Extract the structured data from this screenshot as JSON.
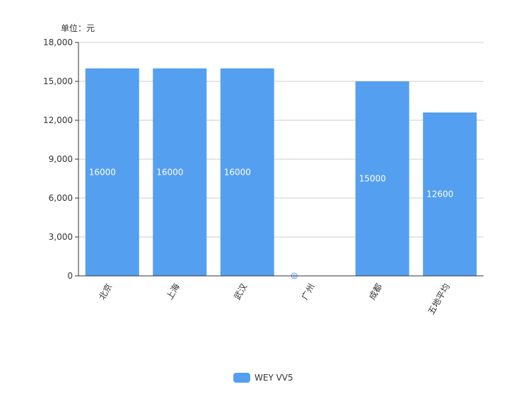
{
  "unit_label": "单位：元",
  "colors": {
    "bar": "#559ff0",
    "grid": "#cccccc",
    "axis": "#333333",
    "zero_marker": "#559ff0"
  },
  "chart_data": {
    "type": "bar",
    "categories": [
      "北京",
      "上海",
      "武汉",
      "广州",
      "成都",
      "五地平均"
    ],
    "series": [
      {
        "name": "WEY VV5",
        "values": [
          16000,
          16000,
          16000,
          0,
          15000,
          12600
        ]
      }
    ],
    "data_labels": [
      "16000",
      "16000",
      "16000",
      "0",
      "15000",
      "12600"
    ],
    "ylim": [
      0,
      18000
    ],
    "yticks": [
      0,
      3000,
      6000,
      9000,
      12000,
      15000,
      18000
    ],
    "ytick_labels": [
      "0",
      "3,000",
      "6,000",
      "9,000",
      "12,000",
      "15,000",
      "18,000"
    ],
    "grid": true,
    "legend": "bottom-center"
  }
}
